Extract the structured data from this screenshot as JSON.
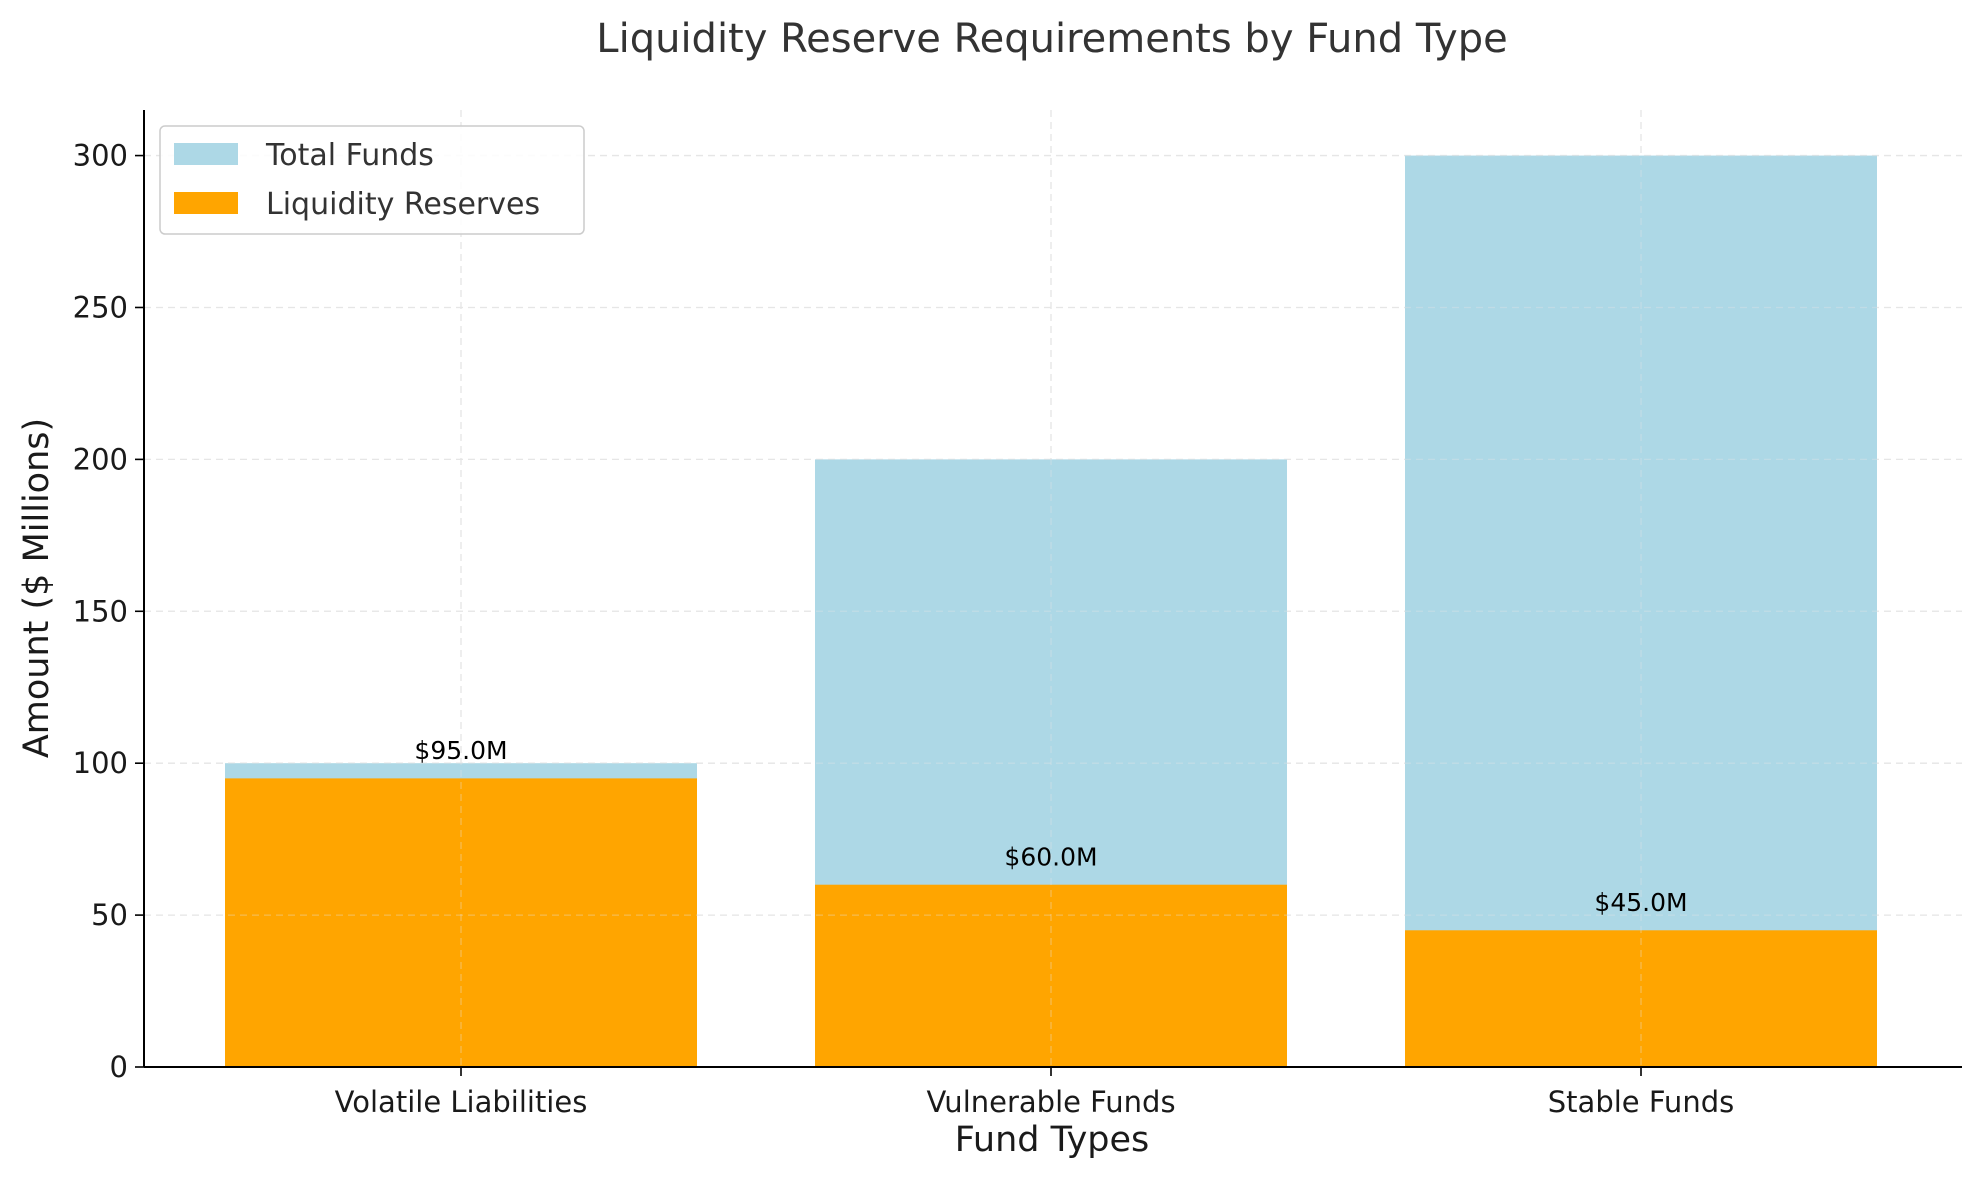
{
  "chart_data": {
    "type": "bar",
    "title": "Liquidity Reserve Requirements by Fund Type",
    "xlabel": "Fund Types",
    "ylabel": "Amount ($ Millions)",
    "categories": [
      "Volatile Liabilities",
      "Vulnerable Funds",
      "Stable Funds"
    ],
    "series": [
      {
        "name": "Total Funds",
        "values": [
          100,
          200,
          300
        ],
        "color": "#add8e6"
      },
      {
        "name": "Liquidity Reserves",
        "values": [
          95,
          60,
          45
        ],
        "color": "#ffa500"
      }
    ],
    "data_labels": [
      "$95.0M",
      "$60.0M",
      "$45.0M"
    ],
    "y_ticks": [
      0,
      50,
      100,
      150,
      200,
      250,
      300
    ],
    "ylim": [
      0,
      315
    ],
    "grid": true,
    "legend_position": "top-left",
    "overlay": true
  }
}
